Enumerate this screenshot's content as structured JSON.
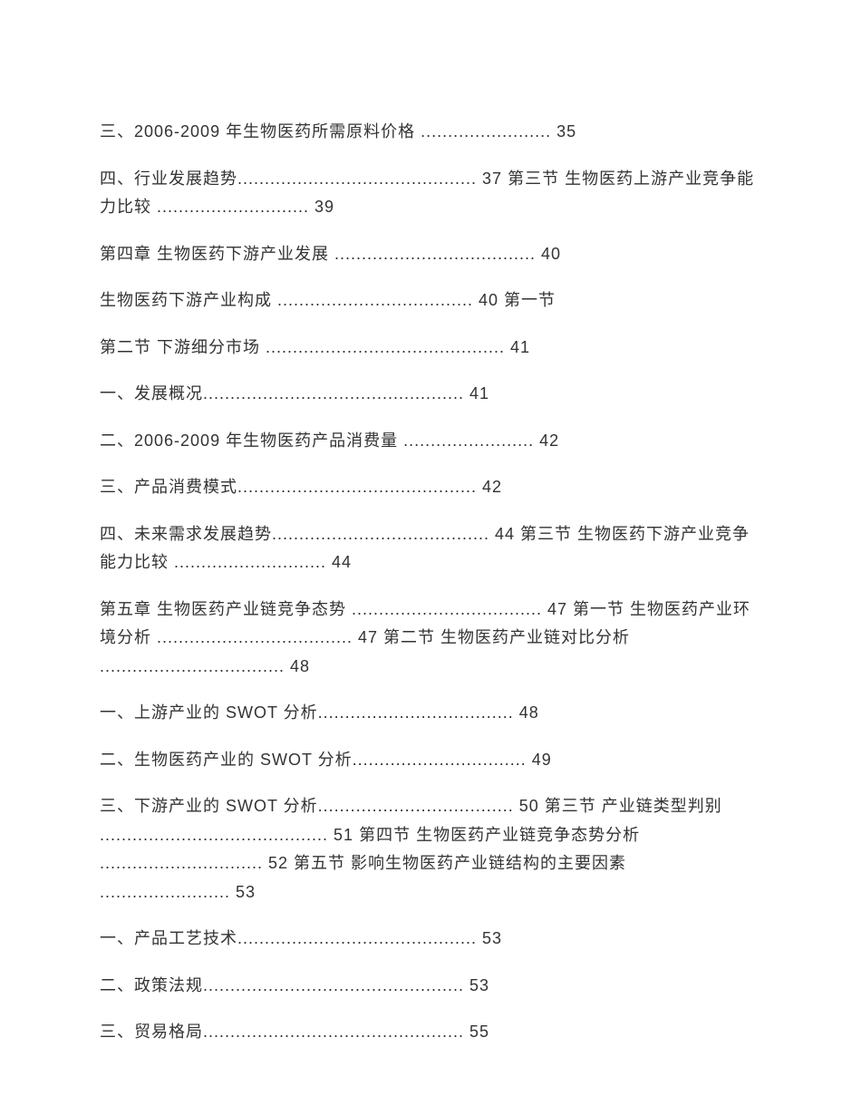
{
  "document": {
    "type": "table_of_contents",
    "font_family": "Microsoft YaHei",
    "font_size": 18,
    "text_color": "#333333",
    "background_color": "#ffffff",
    "line_height": 1.75,
    "entries": [
      {
        "text": "三、2006-2009 年生物医药所需原料价格 ........................ 35"
      },
      {
        "text": "四、行业发展趋势............................................ 37 第三节 生物医药上游产业竞争能力比较 ............................ 39"
      },
      {
        "text": "第四章 生物医药下游产业发展 ..................................... 40"
      },
      {
        "text": "生物医药下游产业构成 .................................... 40 第一节"
      },
      {
        "text": "第二节 下游细分市场 ............................................ 41"
      },
      {
        "text": "一、发展概况................................................ 41"
      },
      {
        "text": "二、2006-2009 年生物医药产品消费量 ........................ 42"
      },
      {
        "text": "三、产品消费模式............................................ 42"
      },
      {
        "text": "四、未来需求发展趋势........................................ 44 第三节 生物医药下游产业竞争能力比较 ............................ 44"
      },
      {
        "text": "第五章 生物医药产业链竞争态势 ................................... 47 第一节 生物医药产业环境分析 .................................... 47 第二节 生物医药产业链对比分析 .................................. 48"
      },
      {
        "text": "一、上游产业的 SWOT 分析.................................... 48"
      },
      {
        "text": "二、生物医药产业的 SWOT 分析................................ 49"
      },
      {
        "text": "三、下游产业的 SWOT 分析.................................... 50 第三节 产业链类型判别 .......................................... 51 第四节 生物医药产业链竞争态势分析 .............................. 52 第五节 影响生物医药产业链结构的主要因素 ........................ 53"
      },
      {
        "text": "一、产品工艺技术............................................ 53"
      },
      {
        "text": "二、政策法规................................................ 53"
      },
      {
        "text": "三、贸易格局................................................ 55"
      }
    ]
  }
}
